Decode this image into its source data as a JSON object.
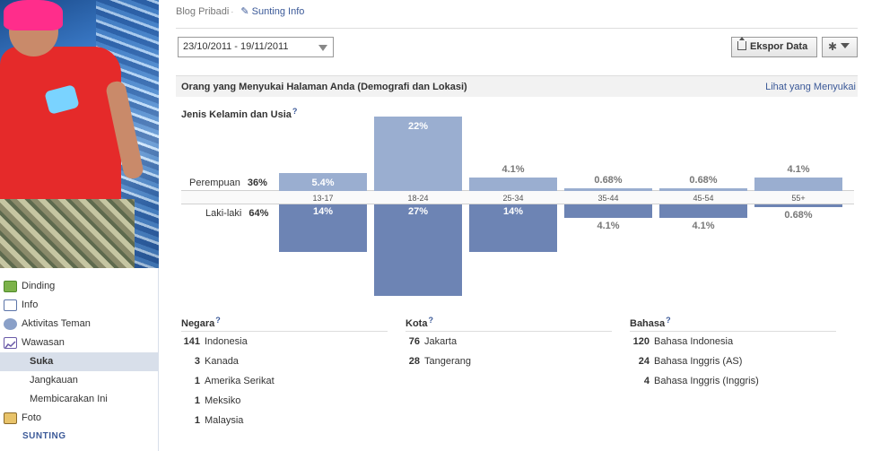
{
  "sidebar": {
    "items": [
      {
        "label": "Dinding",
        "icon": "wall-icon"
      },
      {
        "label": "Info",
        "icon": "info-icon"
      },
      {
        "label": "Aktivitas Teman",
        "icon": "friends-icon"
      },
      {
        "label": "Wawasan",
        "icon": "insights-icon"
      },
      {
        "label": "Suka"
      },
      {
        "label": "Jangkauan"
      },
      {
        "label": "Membicarakan Ini"
      },
      {
        "label": "Foto",
        "icon": "photo-icon"
      }
    ],
    "edit_label": "SUNTING"
  },
  "header": {
    "breadcrumb_page": "Blog Pribadi",
    "breadcrumb_sep": "·",
    "edit_info": "Sunting Info",
    "date_range": "23/10/2011 - 19/11/2011",
    "export_label": "Ekspor Data"
  },
  "section": {
    "title": "Orang yang Menyukai Halaman Anda (Demografi dan Lokasi)",
    "link": "Lihat yang Menyukai"
  },
  "gender_age": {
    "title": "Jenis Kelamin dan Usia",
    "help": "?",
    "female_label": "Perempuan",
    "female_pct": "36%",
    "male_label": "Laki-laki",
    "male_pct": "64%"
  },
  "chart_data": {
    "type": "bar",
    "categories": [
      "13-17",
      "18-24",
      "25-34",
      "35-44",
      "45-54",
      "55+"
    ],
    "series": [
      {
        "name": "Perempuan",
        "values": [
          5.4,
          22,
          4.1,
          0.68,
          0.68,
          4.1
        ],
        "labels": [
          "5.4%",
          "22%",
          "4.1%",
          "0.68%",
          "0.68%",
          "4.1%"
        ]
      },
      {
        "name": "Laki-laki",
        "values": [
          14,
          27,
          14,
          4.1,
          4.1,
          0.68
        ],
        "labels": [
          "14%",
          "27%",
          "14%",
          "4.1%",
          "4.1%",
          "0.68%"
        ]
      }
    ]
  },
  "countries": {
    "title": "Negara",
    "help": "?",
    "rows": [
      {
        "count": "141",
        "name": "Indonesia"
      },
      {
        "count": "3",
        "name": "Kanada"
      },
      {
        "count": "1",
        "name": "Amerika Serikat"
      },
      {
        "count": "1",
        "name": "Meksiko"
      },
      {
        "count": "1",
        "name": "Malaysia"
      }
    ]
  },
  "cities": {
    "title": "Kota",
    "help": "?",
    "rows": [
      {
        "count": "76",
        "name": "Jakarta"
      },
      {
        "count": "28",
        "name": "Tangerang"
      }
    ]
  },
  "languages": {
    "title": "Bahasa",
    "help": "?",
    "rows": [
      {
        "count": "120",
        "name": "Bahasa Indonesia"
      },
      {
        "count": "24",
        "name": "Bahasa Inggris (AS)"
      },
      {
        "count": "4",
        "name": "Bahasa Inggris (Inggris)"
      }
    ]
  },
  "colors": {
    "female_bar": "#9aaed0",
    "male_bar": "#6d84b4",
    "link": "#3b5998"
  }
}
